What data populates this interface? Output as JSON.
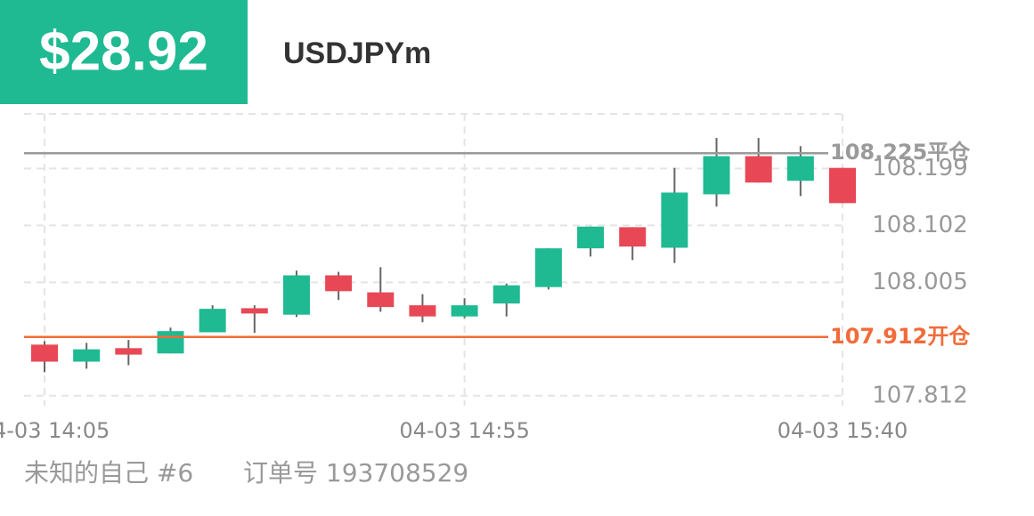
{
  "header": {
    "amount": "$28.92",
    "symbol": "USDJPYm"
  },
  "footer": {
    "user": "未知的自己 #6",
    "order": "订单号 193708529"
  },
  "chart_data": {
    "type": "candlestick",
    "categories": [
      "04-03 14:05",
      null,
      null,
      null,
      null,
      null,
      null,
      null,
      null,
      null,
      "04-03 14:55",
      null,
      null,
      null,
      null,
      null,
      null,
      null,
      null,
      "04-03 15:40"
    ],
    "open": [
      107.899,
      107.87,
      107.893,
      107.884,
      107.92,
      107.961,
      107.95,
      108.017,
      107.988,
      107.966,
      107.947,
      107.969,
      107.997,
      108.063,
      108.099,
      108.064,
      108.155,
      108.22,
      108.178,
      108.2
    ],
    "high": [
      107.905,
      107.902,
      107.907,
      107.928,
      107.966,
      107.966,
      108.025,
      108.023,
      108.031,
      107.985,
      107.978,
      108.003,
      108.063,
      108.1,
      108.099,
      108.2,
      108.251,
      108.251,
      108.237,
      108.2
    ],
    "low": [
      107.852,
      107.858,
      107.864,
      107.884,
      107.92,
      107.919,
      107.946,
      107.975,
      107.955,
      107.937,
      107.944,
      107.947,
      107.993,
      108.049,
      108.043,
      108.038,
      108.134,
      108.175,
      108.152,
      108.14
    ],
    "close": [
      107.87,
      107.891,
      107.882,
      107.922,
      107.96,
      107.952,
      108.017,
      107.99,
      107.963,
      107.947,
      107.966,
      108.0,
      108.063,
      108.1,
      108.066,
      108.158,
      108.22,
      108.175,
      108.22,
      108.14
    ],
    "up_color": "#1fba92",
    "down_color": "#e84855",
    "ylim": [
      107.795,
      108.292
    ],
    "yticks": [
      107.812,
      108.005,
      108.102,
      108.199
    ],
    "grid": true,
    "reference_lines": [
      {
        "value": 108.225,
        "label": "108.225平仓",
        "color": "#9a9a9a"
      },
      {
        "value": 107.912,
        "label": "107.912开仓",
        "color": "#f26b3a"
      }
    ]
  }
}
